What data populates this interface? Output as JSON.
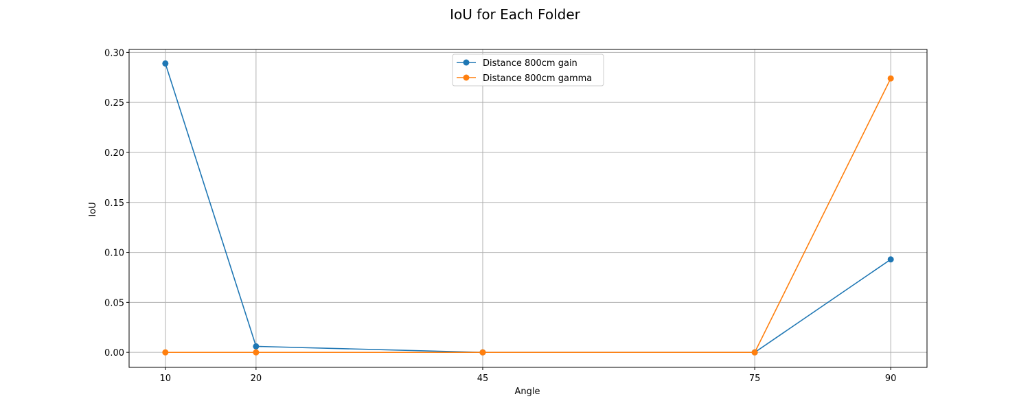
{
  "chart_data": {
    "type": "line",
    "title": "IoU for Each Folder",
    "xlabel": "Angle",
    "ylabel": "IoU",
    "x": [
      10,
      20,
      45,
      75,
      90
    ],
    "x_ticks": [
      "10",
      "20",
      "45",
      "75",
      "90"
    ],
    "xlim": [
      6,
      94
    ],
    "y_ticks": [
      "0.00",
      "0.05",
      "0.10",
      "0.15",
      "0.20",
      "0.25",
      "0.30"
    ],
    "y_tick_values": [
      0.0,
      0.05,
      0.1,
      0.15,
      0.2,
      0.25,
      0.3
    ],
    "ylim": [
      -0.015,
      0.303
    ],
    "grid": true,
    "legend_position": "upper center",
    "series": [
      {
        "name": "Distance 800cm gain",
        "color": "#1f77b4",
        "marker": "circle",
        "values": [
          0.289,
          0.006,
          0.0,
          0.0,
          0.093
        ]
      },
      {
        "name": "Distance 800cm gamma",
        "color": "#ff7f0e",
        "marker": "circle",
        "values": [
          0.0,
          0.0,
          0.0,
          0.0,
          0.274
        ]
      }
    ]
  }
}
